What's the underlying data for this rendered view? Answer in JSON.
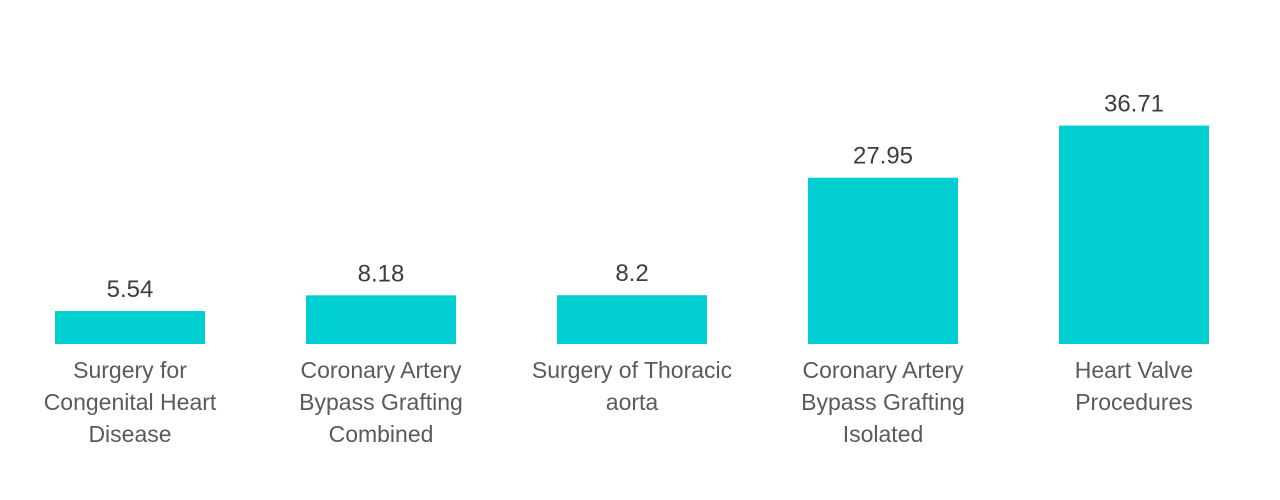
{
  "chart_data": {
    "type": "bar",
    "title": "",
    "xlabel": "",
    "ylabel": "",
    "categories": [
      "Surgery for Congenital Heart Disease",
      "Coronary Artery Bypass Grafting Combined",
      "Surgery of Thoracic aorta",
      "Coronary Artery Bypass Grafting Isolated",
      "Heart Valve Procedures"
    ],
    "category_lines": [
      [
        "Surgery for",
        "Congenital Heart",
        "Disease"
      ],
      [
        "Coronary Artery",
        "Bypass Grafting",
        "Combined"
      ],
      [
        "Surgery of Thoracic",
        "aorta"
      ],
      [
        "Coronary Artery",
        "Bypass Grafting",
        "Isolated"
      ],
      [
        "Heart Valve",
        "Procedures"
      ]
    ],
    "values": [
      5.54,
      8.18,
      8.2,
      27.95,
      36.71
    ],
    "value_labels": [
      "5.54",
      "8.18",
      "8.2",
      "27.95",
      "36.71"
    ],
    "ylim": [
      0,
      40
    ],
    "grid": false,
    "legend": "none",
    "bar_color": "#00ced1"
  }
}
